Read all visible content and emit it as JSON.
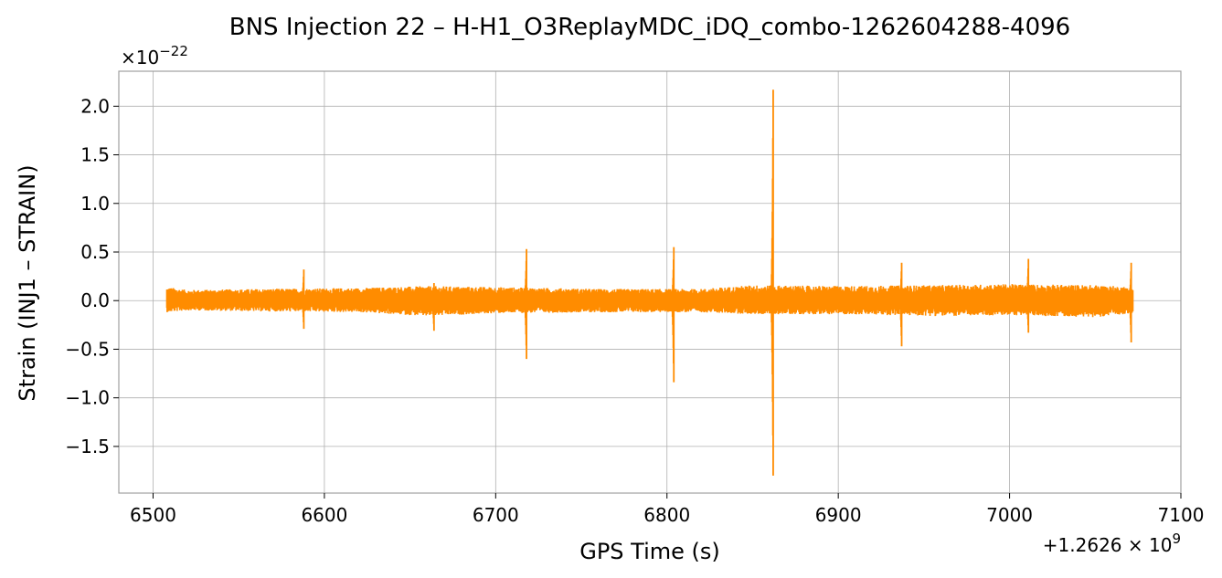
{
  "chart_data": {
    "type": "line",
    "title": "BNS Injection 22 – H-H1_O3ReplayMDC_iDQ_combo-1262604288-4096",
    "xlabel": "GPS Time (s)",
    "ylabel": "Strain (INJ1 – STRAIN)",
    "x_offset_label": "+1.2626 × 10",
    "x_offset_exponent": "9",
    "y_scale_label": "×10",
    "y_scale_exponent": "−22",
    "xlim": [
      6480,
      7100
    ],
    "ylim": [
      -1.98,
      2.36
    ],
    "x_ticks": [
      6500,
      6600,
      6700,
      6800,
      6900,
      7000,
      7100
    ],
    "x_tick_labels": [
      "6500",
      "6600",
      "6700",
      "6800",
      "6900",
      "7000",
      "7100"
    ],
    "y_ticks": [
      2.0,
      1.5,
      1.0,
      0.5,
      0.0,
      -0.5,
      -1.0,
      -1.5
    ],
    "y_tick_labels": [
      "2.0",
      "1.5",
      "1.0",
      "0.5",
      "0.0",
      "−0.5",
      "−1.0",
      "−1.5"
    ],
    "grid": true,
    "series": [
      {
        "color": "#ff8c00",
        "noise_envelope": {
          "x": [
            6508,
            6520,
            6560,
            6620,
            6660,
            6700,
            6760,
            6820,
            6850,
            6900,
            6960,
            7000,
            7050,
            7072
          ],
          "upper": [
            0.14,
            0.11,
            0.12,
            0.13,
            0.15,
            0.14,
            0.12,
            0.12,
            0.16,
            0.15,
            0.16,
            0.17,
            0.16,
            0.14
          ],
          "lower": [
            -0.12,
            -0.1,
            -0.11,
            -0.12,
            -0.16,
            -0.13,
            -0.12,
            -0.12,
            -0.14,
            -0.14,
            -0.16,
            -0.15,
            -0.17,
            -0.13
          ]
        },
        "spikes": [
          {
            "x": 6588,
            "max": 0.32,
            "min": -0.29
          },
          {
            "x": 6664,
            "max": 0.18,
            "min": -0.31
          },
          {
            "x": 6718,
            "max": 0.53,
            "min": -0.6
          },
          {
            "x": 6804,
            "max": 0.55,
            "min": -0.84
          },
          {
            "x": 6862,
            "max": 2.17,
            "min": -1.8
          },
          {
            "x": 6937,
            "max": 0.39,
            "min": -0.47
          },
          {
            "x": 7011,
            "max": 0.43,
            "min": -0.33
          },
          {
            "x": 7071,
            "max": 0.39,
            "min": -0.43
          }
        ]
      }
    ]
  }
}
